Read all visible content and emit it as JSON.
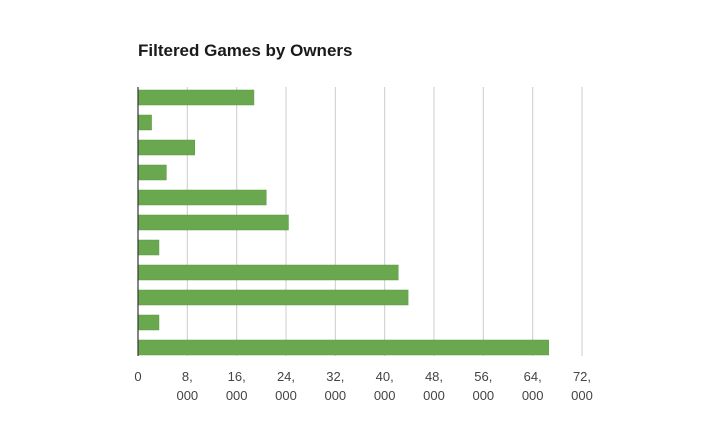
{
  "chart_data": {
    "type": "bar",
    "orientation": "horizontal",
    "title": "Filtered Games by Owners",
    "xlabel": "",
    "ylabel": "",
    "categories": [
      "",
      "",
      "",
      "",
      "",
      "",
      "",
      "",
      "",
      "",
      ""
    ],
    "values": [
      18800,
      2200,
      9200,
      4600,
      20800,
      24400,
      3400,
      42200,
      43800,
      3400,
      66600
    ],
    "xlim": [
      0,
      72000
    ],
    "ticks": [
      {
        "value": 0,
        "label": [
          "0"
        ]
      },
      {
        "value": 8000,
        "label": [
          "8,",
          "000"
        ]
      },
      {
        "value": 16000,
        "label": [
          "16,",
          "000"
        ]
      },
      {
        "value": 24000,
        "label": [
          "24,",
          "000"
        ]
      },
      {
        "value": 32000,
        "label": [
          "32,",
          "000"
        ]
      },
      {
        "value": 40000,
        "label": [
          "40,",
          "000"
        ]
      },
      {
        "value": 48000,
        "label": [
          "48,",
          "000"
        ]
      },
      {
        "value": 56000,
        "label": [
          "56,",
          "000"
        ]
      },
      {
        "value": 64000,
        "label": [
          "64,",
          "000"
        ]
      },
      {
        "value": 72000,
        "label": [
          "72,",
          "000"
        ]
      }
    ],
    "grid": true,
    "legend": "none",
    "bar_color": "#6aa84f",
    "bar_border_color": "#5a9940",
    "grid_color": "#cccccc",
    "axis_color": "#333333"
  }
}
